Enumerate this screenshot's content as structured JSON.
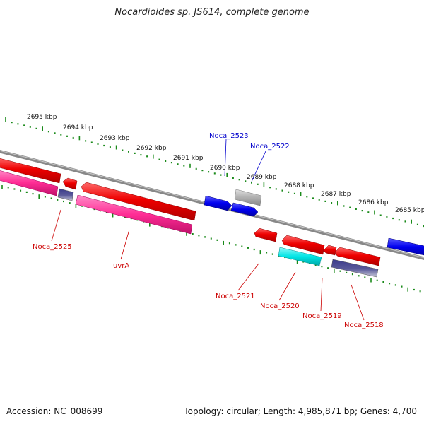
{
  "title": "Nocardioides sp. JS614, complete genome",
  "footer": {
    "accession": "Accession: NC_008699",
    "stats": "Topology: circular; Length: 4,985,871 bp; Genes: 4,700"
  },
  "scale_labels": [
    "2695 kbp",
    "2694 kbp",
    "2693 kbp",
    "2692 kbp",
    "2691 kbp",
    "2690 kbp",
    "2689 kbp",
    "2688 kbp",
    "2687 kbp",
    "2686 kbp",
    "2685 kbp"
  ],
  "gene_labels": [
    {
      "text": "Noca_2523",
      "color": "#0000cc"
    },
    {
      "text": "Noca_2522",
      "color": "#0000cc"
    },
    {
      "text": "Noca_2525",
      "color": "#cc0000"
    },
    {
      "text": "uvrA",
      "color": "#cc0000"
    },
    {
      "text": "Noca_2521",
      "color": "#cc0000"
    },
    {
      "text": "Noca_2520",
      "color": "#cc0000"
    },
    {
      "text": "Noca_2519",
      "color": "#cc0000"
    },
    {
      "text": "Noca_2518",
      "color": "#cc0000"
    }
  ],
  "colors": {
    "backbone": "#888888",
    "ticks": "#1a8a1a",
    "forward_gene": "#0000ee",
    "reverse_gene": "#ee0000",
    "rna_pink": "#ff2d95",
    "cyan_gene": "#00e5e5",
    "gray_gene": "#b0b0b0",
    "navy_gene": "#3a3a8a"
  }
}
